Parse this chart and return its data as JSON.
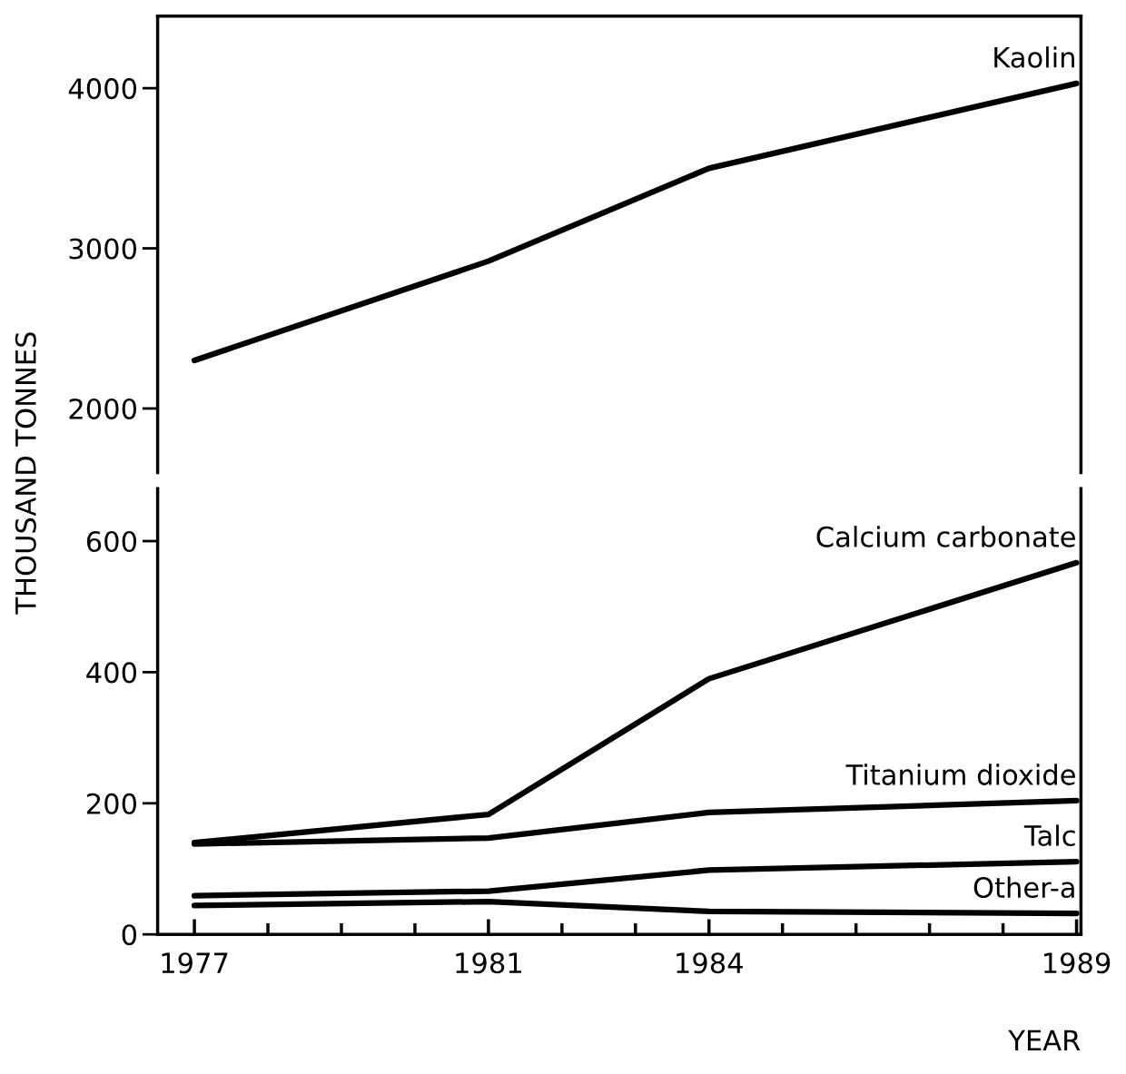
{
  "chart_data": [
    {
      "type": "line",
      "ylabel": "THOUSAND TONNES",
      "x": [
        1977,
        1981,
        1984,
        1989
      ],
      "xlim": [
        1976.5,
        1989.06
      ],
      "ylim": [
        1600,
        4450
      ],
      "yticks": [
        2000,
        3000,
        4000
      ],
      "tick_labels": "y",
      "grid": false,
      "legend": false,
      "series": [
        {
          "name": "Kaolin",
          "color": "#000000",
          "values": [
            2300,
            2920,
            3500,
            4030
          ]
        }
      ]
    },
    {
      "type": "line",
      "xlabel": "YEAR",
      "x": [
        1977,
        1981,
        1984,
        1989
      ],
      "xlim": [
        1976.5,
        1989.06
      ],
      "ylim": [
        0,
        680
      ],
      "yticks": [
        0,
        200,
        400,
        600
      ],
      "xticks": [
        {
          "value": 1977,
          "label": "1977"
        },
        {
          "value": 1978,
          "label": null
        },
        {
          "value": 1979,
          "label": null
        },
        {
          "value": 1980,
          "label": null
        },
        {
          "value": 1981,
          "label": "1981"
        },
        {
          "value": 1982,
          "label": null
        },
        {
          "value": 1983,
          "label": null
        },
        {
          "value": 1984,
          "label": "1984"
        },
        {
          "value": 1985,
          "label": null
        },
        {
          "value": 1986,
          "label": null
        },
        {
          "value": 1987,
          "label": null
        },
        {
          "value": 1988,
          "label": null
        },
        {
          "value": 1989,
          "label": "1989"
        }
      ],
      "grid": false,
      "legend": false,
      "series": [
        {
          "name": "Calcium carbonate",
          "color": "#000000",
          "values": [
            140,
            183,
            390,
            567
          ]
        },
        {
          "name": "Titanium dioxide",
          "color": "#000000",
          "values": [
            138,
            147,
            186,
            204
          ]
        },
        {
          "name": "Talc",
          "color": "#000000",
          "values": [
            59,
            66,
            98,
            111
          ]
        },
        {
          "name": "Other-a",
          "color": "#000000",
          "values": [
            44,
            50,
            35,
            32
          ]
        }
      ]
    }
  ]
}
